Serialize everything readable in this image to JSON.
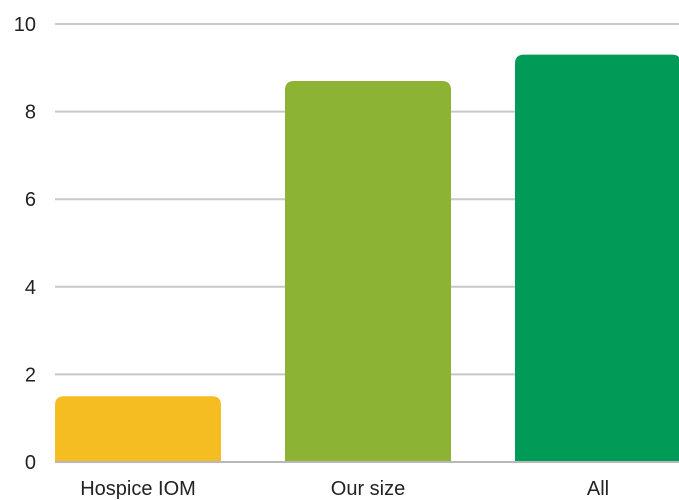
{
  "chart_data": {
    "type": "bar",
    "categories": [
      "Hospice IOM",
      "Our size",
      "All"
    ],
    "values": [
      1.5,
      8.7,
      9.3
    ],
    "colors": [
      "#F5BD22",
      "#8CB334",
      "#029A57"
    ],
    "ylim": [
      0,
      10
    ],
    "yticks": [
      "0",
      "2",
      "4",
      "6",
      "8",
      "10"
    ],
    "grid": true,
    "legend": "none",
    "title": "",
    "xlabel": "",
    "ylabel": ""
  }
}
